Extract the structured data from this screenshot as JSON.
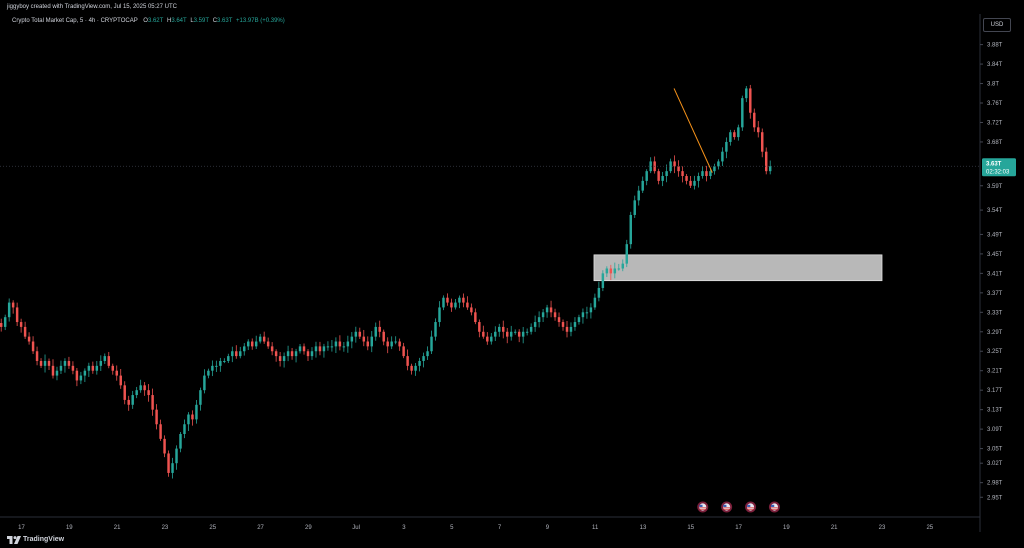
{
  "header": {
    "credit": "jiggyboy created with TradingView.com, Jul 15, 2025 05:27 UTC"
  },
  "legend": {
    "title": "Crypto Total Market Cap, 5 · 4h · CRYPTOCAP",
    "open_label": "O",
    "open": "3.62T",
    "high_label": "H",
    "high": "3.64T",
    "low_label": "L",
    "low": "3.59T",
    "close_label": "C",
    "close": "3.63T",
    "change": "+13.97B (+0.39%)"
  },
  "currency": "USD",
  "price_tag": {
    "price": "3.63T",
    "countdown": "02:32:03"
  },
  "footer": {
    "brand": "TradingView"
  },
  "colors": {
    "up": "#26a69a",
    "down": "#ef5350",
    "trendline": "#f7931a",
    "zone": "#c8c8c8"
  },
  "chart_data": {
    "type": "candlestick",
    "y_unit": "T",
    "ylim": [
      2.93,
      3.91
    ],
    "y_ticks": [
      {
        "value": 3.88,
        "label": "3.88T"
      },
      {
        "value": 3.84,
        "label": "3.84T"
      },
      {
        "value": 3.8,
        "label": "3.8T"
      },
      {
        "value": 3.76,
        "label": "3.76T"
      },
      {
        "value": 3.72,
        "label": "3.72T"
      },
      {
        "value": 3.68,
        "label": "3.68T"
      },
      {
        "value": 3.59,
        "label": "3.59T"
      },
      {
        "value": 3.54,
        "label": "3.54T"
      },
      {
        "value": 3.49,
        "label": "3.49T"
      },
      {
        "value": 3.45,
        "label": "3.45T"
      },
      {
        "value": 3.41,
        "label": "3.41T"
      },
      {
        "value": 3.37,
        "label": "3.37T"
      },
      {
        "value": 3.33,
        "label": "3.33T"
      },
      {
        "value": 3.29,
        "label": "3.29T"
      },
      {
        "value": 3.25,
        "label": "3.25T"
      },
      {
        "value": 3.21,
        "label": "3.21T"
      },
      {
        "value": 3.17,
        "label": "3.17T"
      },
      {
        "value": 3.13,
        "label": "3.13T"
      },
      {
        "value": 3.09,
        "label": "3.09T"
      },
      {
        "value": 3.05,
        "label": "3.05T"
      },
      {
        "value": 3.02,
        "label": "3.02T"
      },
      {
        "value": 2.98,
        "label": "2.98T"
      },
      {
        "value": 2.95,
        "label": "2.95T"
      }
    ],
    "x_ticks": [
      {
        "day": 17,
        "label": "17"
      },
      {
        "day": 19,
        "label": "19"
      },
      {
        "day": 21,
        "label": "21"
      },
      {
        "day": 23,
        "label": "23"
      },
      {
        "day": 25,
        "label": "25"
      },
      {
        "day": 27,
        "label": "27"
      },
      {
        "day": 29,
        "label": "29"
      },
      {
        "day": 31,
        "label": "Jul"
      },
      {
        "day": 33,
        "label": "3"
      },
      {
        "day": 35,
        "label": "5"
      },
      {
        "day": 37,
        "label": "7"
      },
      {
        "day": 39,
        "label": "9"
      },
      {
        "day": 41,
        "label": "11"
      },
      {
        "day": 43,
        "label": "13"
      },
      {
        "day": 45,
        "label": "15"
      },
      {
        "day": 47,
        "label": "17"
      },
      {
        "day": 49,
        "label": "19"
      },
      {
        "day": 51,
        "label": "21"
      },
      {
        "day": 53,
        "label": "23"
      },
      {
        "day": 55,
        "label": "25"
      }
    ],
    "x_domain": [
      16.1,
      57.1
    ],
    "candle_interval_days": 0.1667,
    "series_start_day": 16.15,
    "closes": [
      3.3,
      3.32,
      3.35,
      3.34,
      3.31,
      3.3,
      3.28,
      3.27,
      3.25,
      3.23,
      3.22,
      3.23,
      3.22,
      3.2,
      3.21,
      3.22,
      3.23,
      3.22,
      3.21,
      3.19,
      3.2,
      3.21,
      3.22,
      3.21,
      3.22,
      3.23,
      3.24,
      3.22,
      3.21,
      3.2,
      3.18,
      3.15,
      3.14,
      3.16,
      3.17,
      3.18,
      3.17,
      3.16,
      3.13,
      3.1,
      3.07,
      3.04,
      3.0,
      3.02,
      3.05,
      3.08,
      3.1,
      3.12,
      3.11,
      3.14,
      3.17,
      3.2,
      3.21,
      3.22,
      3.22,
      3.23,
      3.23,
      3.24,
      3.25,
      3.24,
      3.25,
      3.26,
      3.27,
      3.26,
      3.27,
      3.28,
      3.27,
      3.26,
      3.25,
      3.24,
      3.23,
      3.24,
      3.25,
      3.24,
      3.25,
      3.26,
      3.25,
      3.24,
      3.25,
      3.26,
      3.25,
      3.26,
      3.26,
      3.26,
      3.27,
      3.26,
      3.26,
      3.27,
      3.28,
      3.29,
      3.28,
      3.27,
      3.26,
      3.28,
      3.3,
      3.29,
      3.27,
      3.26,
      3.27,
      3.27,
      3.26,
      3.24,
      3.22,
      3.21,
      3.22,
      3.23,
      3.24,
      3.25,
      3.28,
      3.31,
      3.34,
      3.36,
      3.35,
      3.34,
      3.35,
      3.36,
      3.35,
      3.34,
      3.33,
      3.31,
      3.29,
      3.28,
      3.27,
      3.28,
      3.29,
      3.3,
      3.29,
      3.28,
      3.29,
      3.29,
      3.28,
      3.29,
      3.29,
      3.3,
      3.31,
      3.32,
      3.33,
      3.34,
      3.33,
      3.32,
      3.31,
      3.3,
      3.29,
      3.3,
      3.31,
      3.32,
      3.33,
      3.33,
      3.34,
      3.36,
      3.38,
      3.41,
      3.42,
      3.41,
      3.42,
      3.42,
      3.43,
      3.47,
      3.53,
      3.56,
      3.58,
      3.6,
      3.62,
      3.64,
      3.62,
      3.6,
      3.61,
      3.62,
      3.64,
      3.63,
      3.62,
      3.61,
      3.6,
      3.59,
      3.6,
      3.61,
      3.62,
      3.61,
      3.62,
      3.63,
      3.64,
      3.66,
      3.68,
      3.7,
      3.69,
      3.71,
      3.77,
      3.79,
      3.74,
      3.71,
      3.7,
      3.66,
      3.62,
      3.63
    ],
    "annotations": {
      "demand_zone": {
        "top": 3.448,
        "bottom": 3.395,
        "start_day": 40.95,
        "end_day": 53.0
      },
      "trendline": {
        "start_day": 44.3,
        "start_value": 3.79,
        "end_day": 45.9,
        "end_value": 3.617
      },
      "last_price_line": 3.63
    },
    "event_markers": {
      "count": 4,
      "days": [
        45.5,
        46.5,
        47.5,
        48.5
      ],
      "icon": "us-flag-icon"
    }
  }
}
